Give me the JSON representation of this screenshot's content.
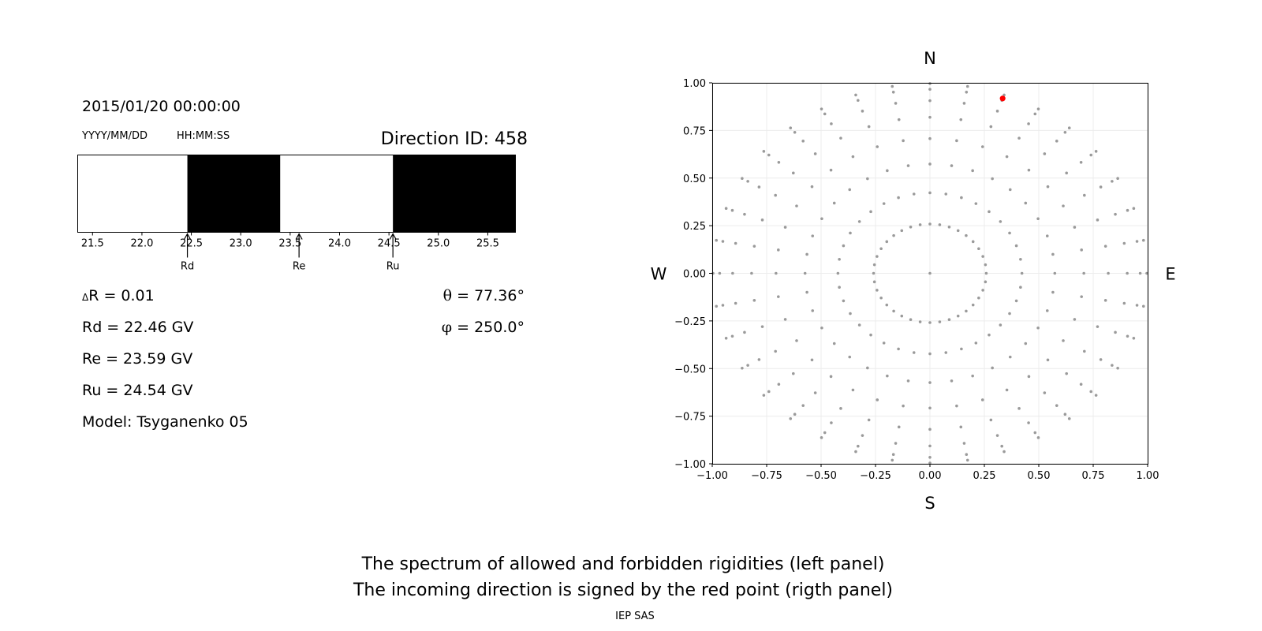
{
  "left_panel": {
    "datetime": "2015/01/20 00:00:00",
    "date_format": "YYYY/MM/DD",
    "time_format": "HH:MM:SS",
    "direction_label": "Direction ID: 458",
    "delta_r_symbol": "Δ",
    "delta_r_text": "R = 0.01",
    "rd_text": "Rd = 22.46 GV",
    "re_text": "Re = 23.59 GV",
    "ru_text": "Ru = 24.54 GV",
    "model_text": "Model: Tsyganenko 05",
    "theta_symbol": "θ",
    "theta_text": " = 77.36°",
    "phi_symbol": "φ",
    "phi_text": " = 250.0°"
  },
  "right_panel": {
    "compass": {
      "north": "N",
      "south": "S",
      "west": "W",
      "east": "E"
    }
  },
  "captions": {
    "line1": "The spectrum of allowed and forbidden rigidities (left panel)",
    "line2": "The incoming direction is signed by the red point (rigth panel)",
    "footer": "IEP SAS"
  },
  "chart_data": [
    {
      "type": "bar",
      "description_role": "rigidity spectrum",
      "xlim": [
        21.35,
        25.78
      ],
      "x_ticks": [
        "21.5",
        "22.0",
        "22.5",
        "23.0",
        "23.5",
        "24.0",
        "24.5",
        "25.0",
        "25.5"
      ],
      "x_tick_values": [
        21.5,
        22.0,
        22.5,
        23.0,
        23.5,
        24.0,
        24.5,
        25.0,
        25.5
      ],
      "segments": [
        {
          "from": 21.35,
          "to": 22.46,
          "state": "allowed",
          "color": "#ffffff"
        },
        {
          "from": 22.46,
          "to": 23.4,
          "state": "forbidden",
          "color": "#000000"
        },
        {
          "from": 23.4,
          "to": 24.54,
          "state": "allowed",
          "color": "#ffffff"
        },
        {
          "from": 24.54,
          "to": 25.78,
          "state": "forbidden",
          "color": "#000000"
        }
      ],
      "markers": [
        {
          "label": "Rd",
          "value": 22.46
        },
        {
          "label": "Re",
          "value": 23.59
        },
        {
          "label": "Ru",
          "value": 24.54
        }
      ]
    },
    {
      "type": "scatter",
      "description_role": "direction grid",
      "xlim": [
        -1.0,
        1.0
      ],
      "ylim": [
        -1.0,
        1.0
      ],
      "x_ticks": [
        "−1.00",
        "−0.75",
        "−0.50",
        "−0.25",
        "0.00",
        "0.25",
        "0.50",
        "0.75",
        "1.00"
      ],
      "y_ticks": [
        "1.00",
        "0.75",
        "0.50",
        "0.25",
        "0.00",
        "−0.25",
        "−0.50",
        "−0.75",
        "−1.00"
      ],
      "tick_values": [
        -1.0,
        -0.75,
        -0.5,
        -0.25,
        0.0,
        0.25,
        0.5,
        0.75,
        1.0
      ],
      "grid": true,
      "grid_point_color": "#9a9a9a",
      "azimuth_step_deg": 10,
      "ring_radii": [
        0.0,
        0.2588,
        0.4226,
        0.5736,
        0.7071,
        0.8192,
        0.9063,
        0.9659,
        0.9962
      ],
      "highlight": {
        "x": 0.334,
        "y": 0.918,
        "color": "#ff0000"
      }
    }
  ]
}
